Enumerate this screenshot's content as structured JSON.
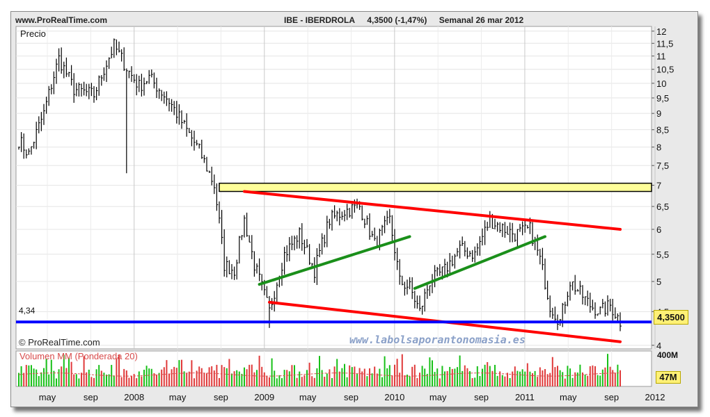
{
  "header": {
    "site": "www.ProRealTime.com",
    "symbol": "IBE - IBERDROLA",
    "price_change": "4,3500 (-1,47%)",
    "period": "Semanal 26 mar 2012"
  },
  "price_panel": {
    "label": "Precio"
  },
  "volume_panel": {
    "label": "Volumen MM (Ponderada 20)",
    "max_label": "400M",
    "last_label": "47M"
  },
  "credit": "© ProRealTime.com",
  "watermark": "www.labolsaporantonomasia.es",
  "level": {
    "label": "4,34",
    "value": 4.34,
    "color": "#0000ff"
  },
  "last_price": {
    "label": "4,3500",
    "value": 4.35
  },
  "colors": {
    "price_bars": "#000000",
    "channel": "#ff0000",
    "trend": "#1a8f1a",
    "zone_fill": "#ffff99",
    "volume_bars": "#18c018",
    "volume_down": "#e03a3a",
    "volume_ma": "#d84a4a"
  },
  "chart_data": {
    "type": "ohlc",
    "x_axis": {
      "tick_labels": [
        "may",
        "sep",
        "2008",
        "may",
        "sep",
        "2009",
        "may",
        "sep",
        "2010",
        "may",
        "sep",
        "2011",
        "may",
        "sep",
        "2012"
      ]
    },
    "y_axis": {
      "scale": "log",
      "tick_labels": [
        "12",
        "11,5",
        "11",
        "10,5",
        "10",
        "9,5",
        "9",
        "8,5",
        "8",
        "7,5",
        "7",
        "6,5",
        "6",
        "5,5",
        "5",
        "4,5",
        "4"
      ],
      "range": [
        3.95,
        12.2
      ]
    },
    "anchor_path": [
      {
        "x": 0,
        "y": 8.2
      },
      {
        "x": 4,
        "y": 7.8
      },
      {
        "x": 10,
        "y": 9.0
      },
      {
        "x": 16,
        "y": 10.9
      },
      {
        "x": 22,
        "y": 9.8
      },
      {
        "x": 30,
        "y": 9.6
      },
      {
        "x": 38,
        "y": 11.4
      },
      {
        "x": 44,
        "y": 10.4
      },
      {
        "x": 48,
        "y": 9.9
      },
      {
        "x": 52,
        "y": 10.2
      },
      {
        "x": 60,
        "y": 9.4
      },
      {
        "x": 66,
        "y": 8.6
      },
      {
        "x": 72,
        "y": 7.9
      },
      {
        "x": 78,
        "y": 7.0
      },
      {
        "x": 82,
        "y": 5.3
      },
      {
        "x": 86,
        "y": 5.2
      },
      {
        "x": 90,
        "y": 6.2
      },
      {
        "x": 94,
        "y": 5.3
      },
      {
        "x": 100,
        "y": 4.5
      },
      {
        "x": 106,
        "y": 5.5
      },
      {
        "x": 112,
        "y": 5.9
      },
      {
        "x": 118,
        "y": 5.2
      },
      {
        "x": 124,
        "y": 6.2
      },
      {
        "x": 130,
        "y": 6.4
      },
      {
        "x": 136,
        "y": 6.5
      },
      {
        "x": 142,
        "y": 5.7
      },
      {
        "x": 148,
        "y": 6.2
      },
      {
        "x": 152,
        "y": 5.0
      },
      {
        "x": 156,
        "y": 4.9
      },
      {
        "x": 160,
        "y": 4.5
      },
      {
        "x": 164,
        "y": 5.0
      },
      {
        "x": 170,
        "y": 5.2
      },
      {
        "x": 176,
        "y": 5.6
      },
      {
        "x": 182,
        "y": 5.5
      },
      {
        "x": 188,
        "y": 6.2
      },
      {
        "x": 194,
        "y": 6.0
      },
      {
        "x": 198,
        "y": 5.9
      },
      {
        "x": 204,
        "y": 6.0
      },
      {
        "x": 208,
        "y": 5.4
      },
      {
        "x": 212,
        "y": 4.6
      },
      {
        "x": 216,
        "y": 4.35
      },
      {
        "x": 220,
        "y": 5.0
      },
      {
        "x": 224,
        "y": 4.8
      },
      {
        "x": 228,
        "y": 4.6
      },
      {
        "x": 232,
        "y": 4.5
      },
      {
        "x": 236,
        "y": 4.6
      },
      {
        "x": 240,
        "y": 4.35
      }
    ],
    "horizontal_zone": {
      "y_range": [
        6.85,
        7.05
      ]
    },
    "trendlines": [
      {
        "color": "red",
        "x": [
          90,
          240
        ],
        "y": [
          6.85,
          6.0
        ]
      },
      {
        "color": "red",
        "x": [
          100,
          240
        ],
        "y": [
          4.65,
          4.05
        ]
      },
      {
        "color": "green",
        "x": [
          96,
          156
        ],
        "y": [
          4.95,
          5.85
        ]
      },
      {
        "color": "green",
        "x": [
          158,
          210
        ],
        "y": [
          4.88,
          5.85
        ]
      }
    ],
    "horizontal_line": {
      "y": 4.34
    }
  }
}
